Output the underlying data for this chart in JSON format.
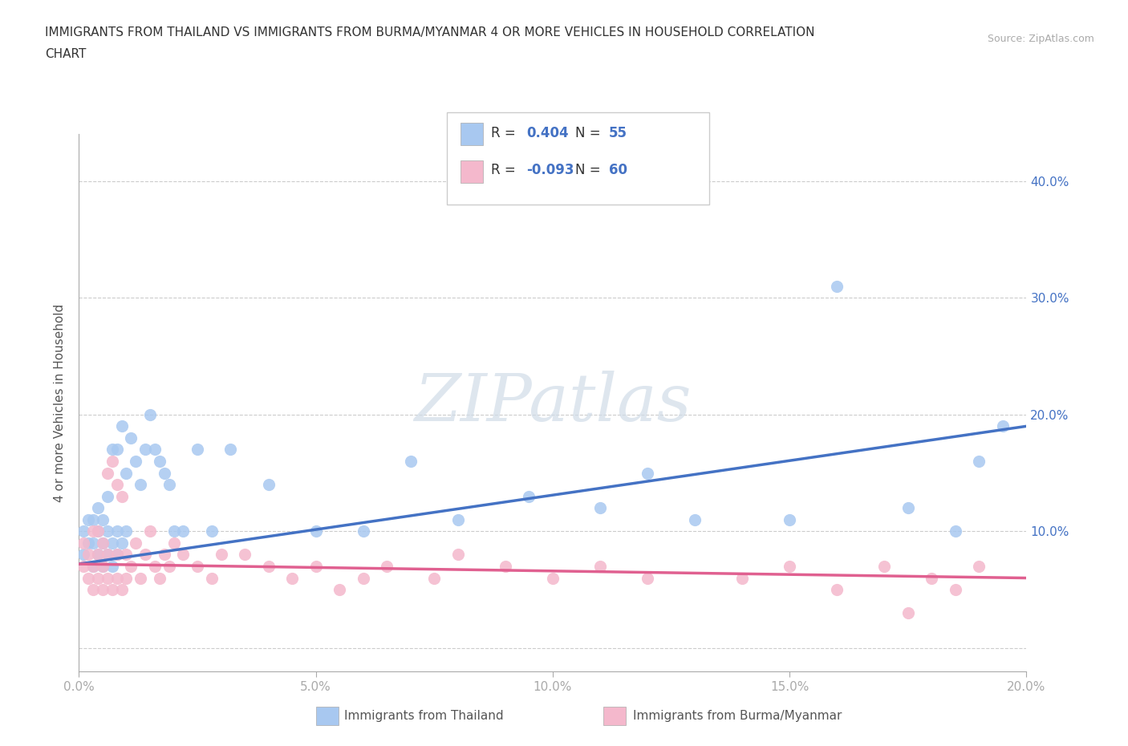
{
  "title_line1": "IMMIGRANTS FROM THAILAND VS IMMIGRANTS FROM BURMA/MYANMAR 4 OR MORE VEHICLES IN HOUSEHOLD CORRELATION",
  "title_line2": "CHART",
  "source_text": "Source: ZipAtlas.com",
  "ylabel": "4 or more Vehicles in Household",
  "xlim": [
    0.0,
    0.2
  ],
  "ylim": [
    -0.02,
    0.44
  ],
  "x_ticks": [
    0.0,
    0.05,
    0.1,
    0.15,
    0.2
  ],
  "x_tick_labels": [
    "0.0%",
    "5.0%",
    "10.0%",
    "15.0%",
    "20.0%"
  ],
  "y_ticks": [
    0.0,
    0.1,
    0.2,
    0.3,
    0.4
  ],
  "y_tick_labels": [
    "",
    "10.0%",
    "20.0%",
    "30.0%",
    "40.0%"
  ],
  "thailand_color": "#a8c8f0",
  "burma_color": "#f4b8cc",
  "thailand_line_color": "#4472c4",
  "burma_line_color": "#e06090",
  "tick_label_color": "#4472c4",
  "legend_R_color": "#4472c4",
  "legend_R_thailand": "0.404",
  "legend_N_thailand": "55",
  "legend_R_burma": "-0.093",
  "legend_N_burma": "60",
  "watermark_text": "ZIPatlas",
  "thailand_scatter_x": [
    0.001,
    0.001,
    0.002,
    0.002,
    0.003,
    0.003,
    0.003,
    0.004,
    0.004,
    0.004,
    0.005,
    0.005,
    0.005,
    0.006,
    0.006,
    0.006,
    0.007,
    0.007,
    0.007,
    0.008,
    0.008,
    0.008,
    0.009,
    0.009,
    0.01,
    0.01,
    0.011,
    0.012,
    0.013,
    0.014,
    0.015,
    0.016,
    0.017,
    0.018,
    0.019,
    0.02,
    0.022,
    0.025,
    0.028,
    0.032,
    0.04,
    0.05,
    0.06,
    0.07,
    0.08,
    0.095,
    0.11,
    0.12,
    0.13,
    0.15,
    0.16,
    0.175,
    0.185,
    0.19,
    0.195
  ],
  "thailand_scatter_y": [
    0.08,
    0.1,
    0.09,
    0.11,
    0.07,
    0.09,
    0.11,
    0.08,
    0.1,
    0.12,
    0.07,
    0.09,
    0.11,
    0.08,
    0.1,
    0.13,
    0.07,
    0.09,
    0.17,
    0.08,
    0.17,
    0.1,
    0.09,
    0.19,
    0.1,
    0.15,
    0.18,
    0.16,
    0.14,
    0.17,
    0.2,
    0.17,
    0.16,
    0.15,
    0.14,
    0.1,
    0.1,
    0.17,
    0.1,
    0.17,
    0.14,
    0.1,
    0.1,
    0.16,
    0.11,
    0.13,
    0.12,
    0.15,
    0.11,
    0.11,
    0.31,
    0.12,
    0.1,
    0.16,
    0.19
  ],
  "burma_scatter_x": [
    0.001,
    0.001,
    0.002,
    0.002,
    0.003,
    0.003,
    0.003,
    0.004,
    0.004,
    0.004,
    0.005,
    0.005,
    0.005,
    0.006,
    0.006,
    0.006,
    0.007,
    0.007,
    0.008,
    0.008,
    0.008,
    0.009,
    0.009,
    0.01,
    0.01,
    0.011,
    0.012,
    0.013,
    0.014,
    0.015,
    0.016,
    0.017,
    0.018,
    0.019,
    0.02,
    0.022,
    0.025,
    0.028,
    0.03,
    0.035,
    0.04,
    0.045,
    0.05,
    0.055,
    0.06,
    0.065,
    0.075,
    0.08,
    0.09,
    0.1,
    0.11,
    0.12,
    0.14,
    0.15,
    0.16,
    0.17,
    0.175,
    0.18,
    0.185,
    0.19
  ],
  "burma_scatter_y": [
    0.07,
    0.09,
    0.06,
    0.08,
    0.05,
    0.07,
    0.1,
    0.06,
    0.08,
    0.1,
    0.05,
    0.07,
    0.09,
    0.06,
    0.08,
    0.15,
    0.05,
    0.16,
    0.06,
    0.08,
    0.14,
    0.05,
    0.13,
    0.06,
    0.08,
    0.07,
    0.09,
    0.06,
    0.08,
    0.1,
    0.07,
    0.06,
    0.08,
    0.07,
    0.09,
    0.08,
    0.07,
    0.06,
    0.08,
    0.08,
    0.07,
    0.06,
    0.07,
    0.05,
    0.06,
    0.07,
    0.06,
    0.08,
    0.07,
    0.06,
    0.07,
    0.06,
    0.06,
    0.07,
    0.05,
    0.07,
    0.03,
    0.06,
    0.05,
    0.07
  ]
}
